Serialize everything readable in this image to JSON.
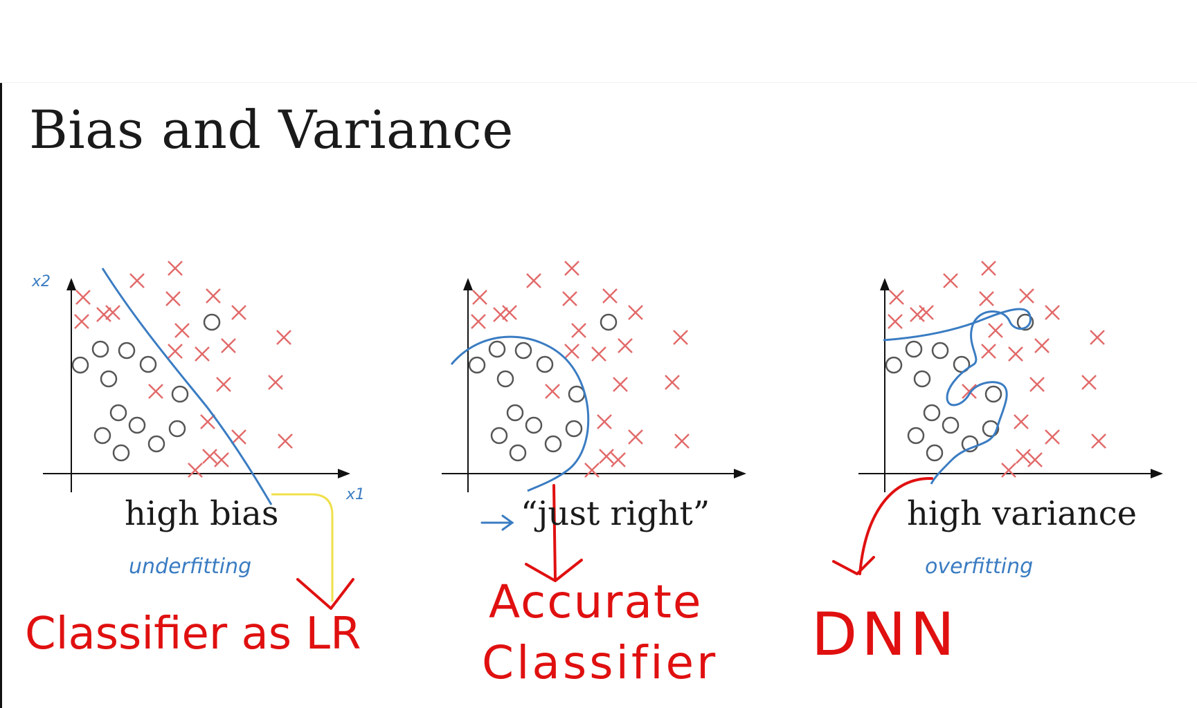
{
  "slide": {
    "title": "Bias and Variance",
    "colors": {
      "cross": "#e26a6a",
      "circle": "#555555",
      "blue_ink": "#3a7cc2",
      "red_ink": "#e01010",
      "yellow_ink": "#f0e04a",
      "axis": "#111111"
    }
  },
  "panels": [
    {
      "caption": "high bias",
      "note": "underfitting",
      "axis_labels": {
        "y": "x2",
        "x": "x1"
      },
      "annotation": "Classifier as LR"
    },
    {
      "caption": "“just right”",
      "annotation_line1": "Accurate",
      "annotation_line2": "Classifier"
    },
    {
      "caption": "high variance",
      "note": "overfitting",
      "annotation": "DNN"
    }
  ]
}
